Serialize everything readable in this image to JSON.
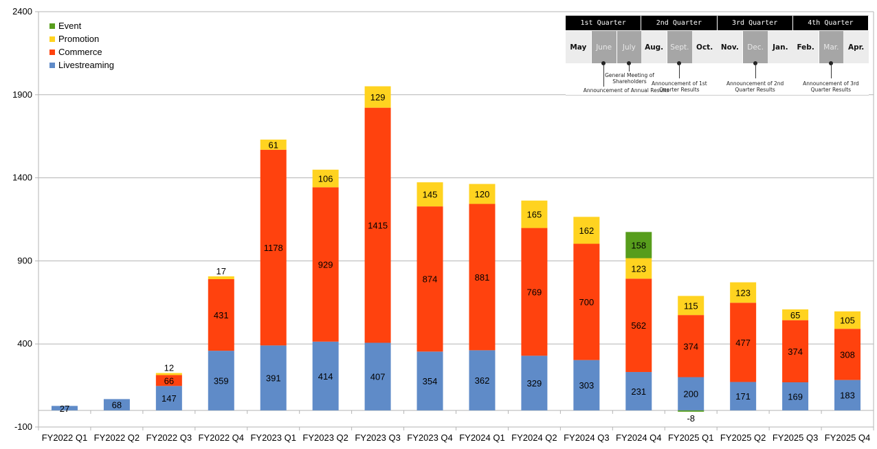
{
  "chart_data": {
    "type": "bar",
    "stacked": true,
    "title": "",
    "xlabel": "",
    "ylabel": "",
    "ylim": [
      -100,
      2400
    ],
    "yticks": [
      -100,
      400,
      900,
      1400,
      1900,
      2400
    ],
    "grid": true,
    "legend_position": "top-left",
    "categories": [
      "FY2022 Q1",
      "FY2022 Q2",
      "FY2022 Q3",
      "FY2022 Q4",
      "FY2023 Q1",
      "FY2023 Q2",
      "FY2023 Q3",
      "FY2023 Q4",
      "FY2024 Q1",
      "FY2024 Q2",
      "FY2024 Q3",
      "FY2024 Q4",
      "FY2025 Q1",
      "FY2025 Q2",
      "FY2025 Q3",
      "FY2025 Q4"
    ],
    "series": [
      {
        "name": "Livestreaming",
        "color": "#5f8bc8",
        "values": [
          27,
          68,
          147,
          359,
          391,
          414,
          407,
          354,
          362,
          329,
          303,
          231,
          200,
          171,
          169,
          183
        ]
      },
      {
        "name": "Commerce",
        "color": "#ff420e",
        "values": [
          0,
          0,
          66,
          431,
          1178,
          929,
          1415,
          874,
          881,
          769,
          700,
          562,
          374,
          477,
          374,
          308
        ]
      },
      {
        "name": "Promotion",
        "color": "#ffd320",
        "values": [
          0,
          0,
          12,
          17,
          61,
          106,
          129,
          145,
          120,
          165,
          162,
          123,
          115,
          123,
          65,
          105
        ]
      },
      {
        "name": "Event",
        "color": "#579d1c",
        "values": [
          0,
          0,
          0,
          0,
          0,
          0,
          0,
          0,
          0,
          0,
          0,
          158,
          -8,
          0,
          0,
          0
        ]
      }
    ],
    "legend_order": [
      "Event",
      "Promotion",
      "Commerce",
      "Livestreaming"
    ]
  },
  "inset": {
    "quarters": [
      {
        "label": "1st Quarter",
        "span": 3
      },
      {
        "label": "2nd Quarter",
        "span": 3
      },
      {
        "label": "3rd Quarter",
        "span": 3
      },
      {
        "label": "4th Quarter",
        "span": 3
      }
    ],
    "months": [
      {
        "label": "May",
        "highlight": false
      },
      {
        "label": "June",
        "highlight": true
      },
      {
        "label": "July",
        "highlight": true
      },
      {
        "label": "Aug.",
        "highlight": false
      },
      {
        "label": "Sept.",
        "highlight": true
      },
      {
        "label": "Oct.",
        "highlight": false
      },
      {
        "label": "Nov.",
        "highlight": false
      },
      {
        "label": "Dec.",
        "highlight": true
      },
      {
        "label": "Jan.",
        "highlight": false
      },
      {
        "label": "Feb.",
        "highlight": false
      },
      {
        "label": "Mar.",
        "highlight": true
      },
      {
        "label": "Apr.",
        "highlight": false
      }
    ],
    "annotations": [
      {
        "month_index": 1,
        "text": "Announcement of Annual Results"
      },
      {
        "month_index": 2,
        "text": "General Meeting of\nShareholders"
      },
      {
        "month_index": 4,
        "text": "Announcement of 1st\nQuarter Results"
      },
      {
        "month_index": 7,
        "text": "Announcement of 2nd\nQuarter Results"
      },
      {
        "month_index": 10,
        "text": "Announcement of 3rd\nQuarter Results"
      }
    ]
  }
}
